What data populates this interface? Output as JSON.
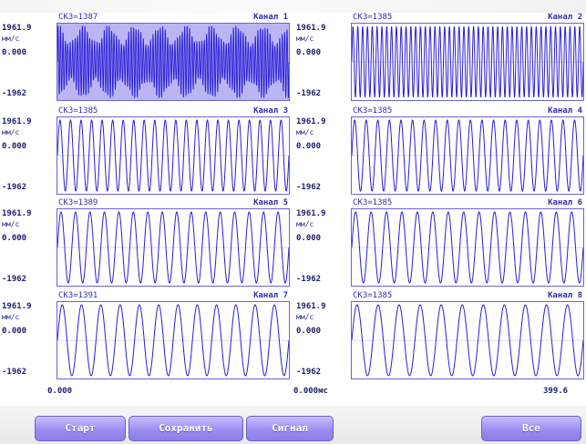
{
  "channels": [
    {
      "skz": "СКЗ=1387",
      "name": "Канал 1",
      "y_top": "1961.9",
      "unit": "мм/с",
      "y_zero": "0.000",
      "y_bottom": "-1962",
      "cycles": 95,
      "dense": true
    },
    {
      "skz": "СКЗ=1385",
      "name": "Канал 2",
      "y_top": "1961.9",
      "unit": "мм/с",
      "y_zero": "0.000",
      "y_bottom": "-1962",
      "cycles": 48,
      "dense": false
    },
    {
      "skz": "СКЗ=1385",
      "name": "Канал 3",
      "y_top": "1961.9",
      "unit": "мм/с",
      "y_zero": "0.000",
      "y_bottom": "-1962",
      "cycles": 22,
      "dense": false
    },
    {
      "skz": "СКЗ=1385",
      "name": "Канал 4",
      "y_top": "1961.9",
      "unit": "мм/с",
      "y_zero": "0.000",
      "y_bottom": "-1962",
      "cycles": 20,
      "dense": false
    },
    {
      "skz": "СКЗ=1389",
      "name": "Канал 5",
      "y_top": "1961.9",
      "unit": "мм/с",
      "y_zero": "0.000",
      "y_bottom": "-1962",
      "cycles": 16,
      "dense": false
    },
    {
      "skz": "СКЗ=1385",
      "name": "Канал 6",
      "y_top": "1961.9",
      "unit": "мм/с",
      "y_zero": "0.000",
      "y_bottom": "-1962",
      "cycles": 15,
      "dense": false
    },
    {
      "skz": "СКЗ=1391",
      "name": "Канал 7",
      "y_top": "1961.9",
      "unit": "мм/с",
      "y_zero": "0.000",
      "y_bottom": "-1962",
      "cycles": 12,
      "dense": false
    },
    {
      "skz": "СКЗ=1385",
      "name": "Канал 8",
      "y_top": "1961.9",
      "unit": "мм/с",
      "y_zero": "0.000",
      "y_bottom": "-1962",
      "cycles": 11,
      "dense": false
    }
  ],
  "x_axis": {
    "left_start": "0.000",
    "right_start": "0.000мс",
    "right_end": "399.6"
  },
  "buttons": {
    "start": "Старт",
    "save": "Сохранить",
    "signal": "Сигнал",
    "all": "Все"
  },
  "colors": {
    "wave": "#2a1fd6",
    "frame": "#6b63d8",
    "button": "#9a8ef0"
  }
}
